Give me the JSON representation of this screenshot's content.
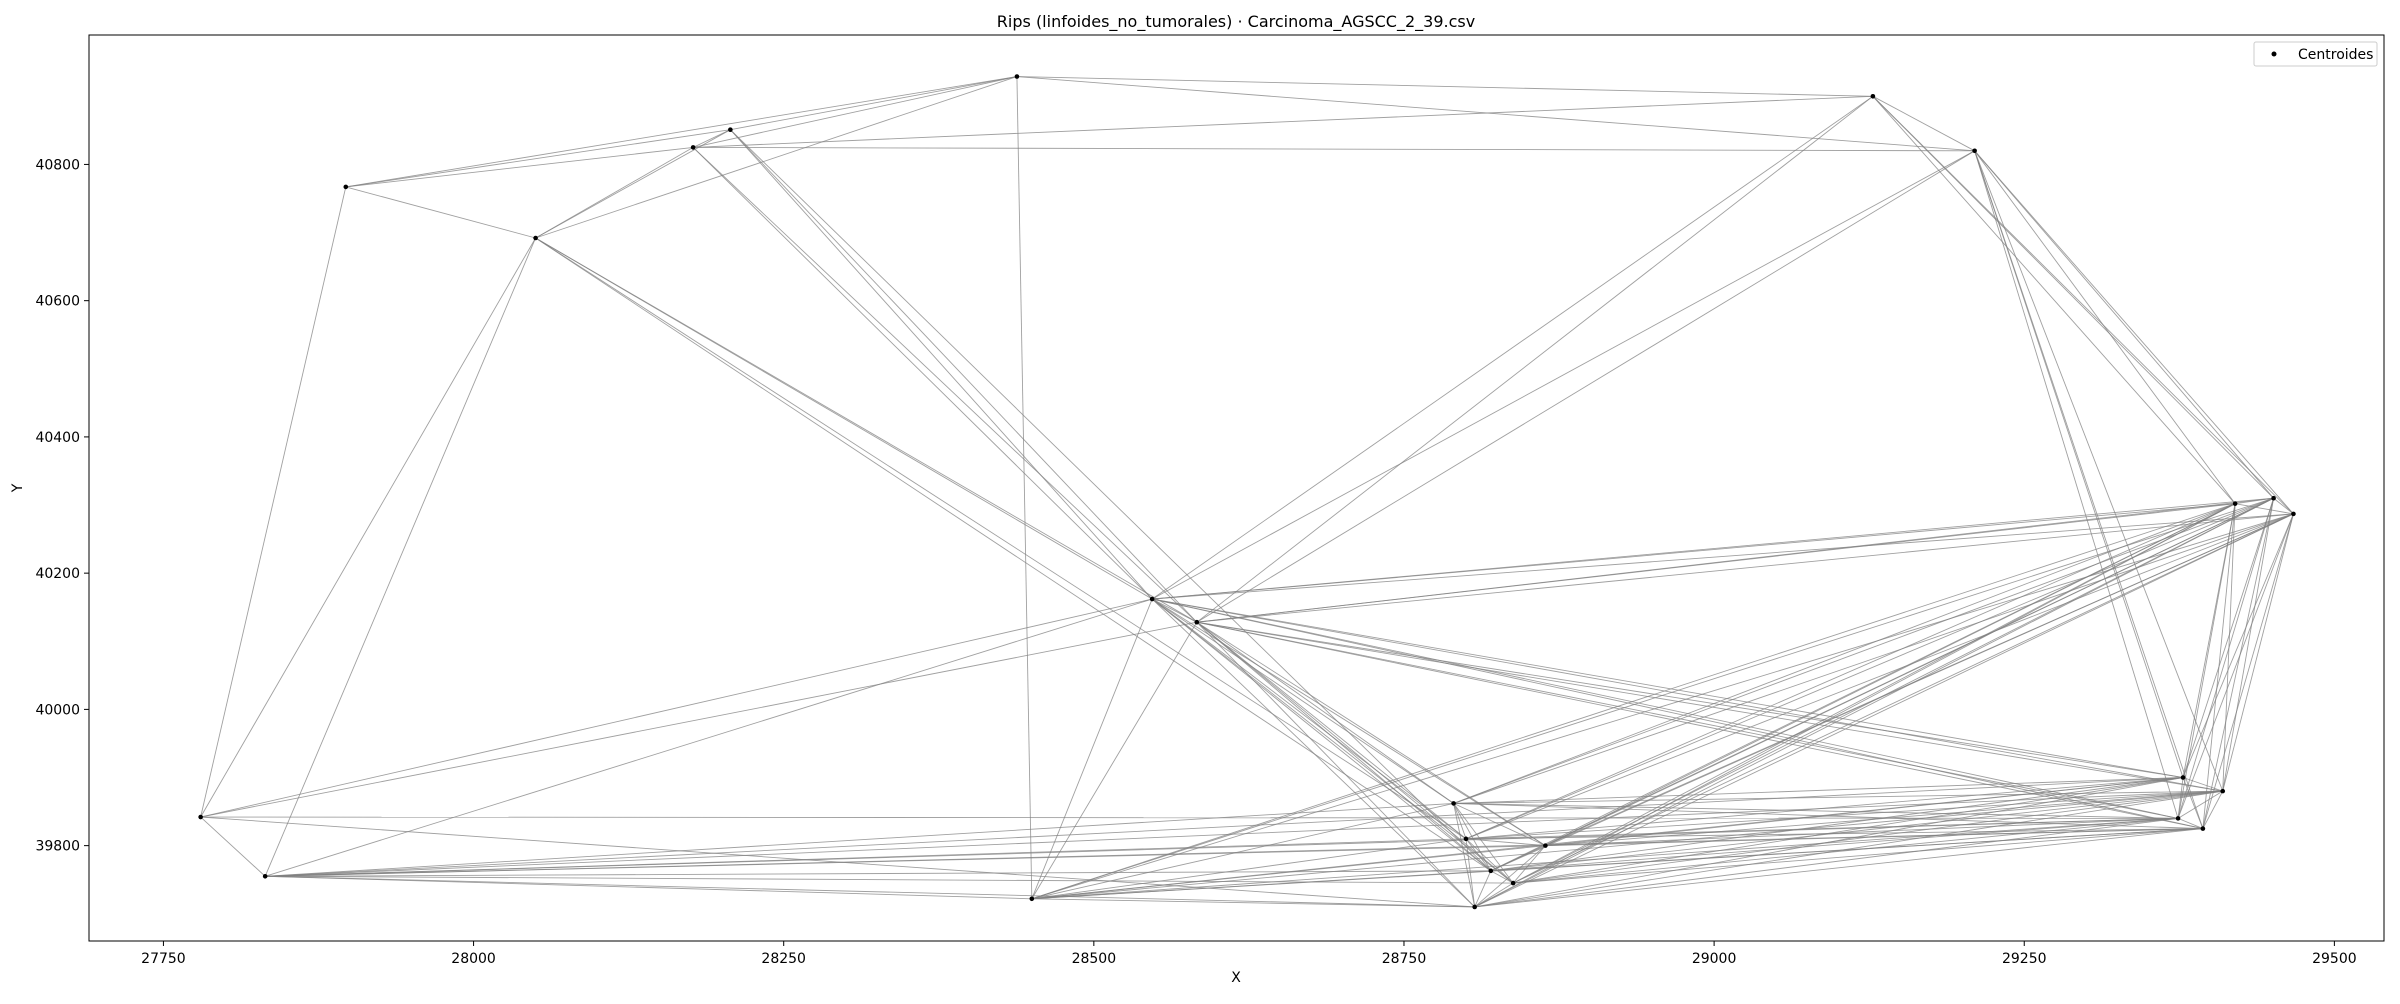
{
  "chart_data": {
    "type": "scatter",
    "title": "Rips (linfoides_no_tumorales) · Carcinoma_AGSCC_2_39.csv",
    "xlabel": "X",
    "ylabel": "Y",
    "xlim": [
      27690,
      29540
    ],
    "ylim": [
      39660,
      40990
    ],
    "xticks": [
      27750,
      28000,
      28250,
      28500,
      28750,
      29000,
      29250,
      29500
    ],
    "yticks": [
      39800,
      40000,
      40200,
      40400,
      40600,
      40800
    ],
    "grid": false,
    "legend": {
      "position": "top-right",
      "entries": [
        "Centroides"
      ]
    },
    "series": [
      {
        "name": "Centroides",
        "color": "#000000",
        "points": [
          {
            "x": 27780,
            "y": 39842
          },
          {
            "x": 27832,
            "y": 39755
          },
          {
            "x": 27897,
            "y": 40767
          },
          {
            "x": 28050,
            "y": 40692
          },
          {
            "x": 28177,
            "y": 40825
          },
          {
            "x": 28207,
            "y": 40851
          },
          {
            "x": 28438,
            "y": 40929
          },
          {
            "x": 28450,
            "y": 39722
          },
          {
            "x": 28547,
            "y": 40162
          },
          {
            "x": 28583,
            "y": 40128
          },
          {
            "x": 28790,
            "y": 39862
          },
          {
            "x": 28800,
            "y": 39810
          },
          {
            "x": 28807,
            "y": 39710
          },
          {
            "x": 28820,
            "y": 39763
          },
          {
            "x": 28838,
            "y": 39745
          },
          {
            "x": 28864,
            "y": 39800
          },
          {
            "x": 29128,
            "y": 40900
          },
          {
            "x": 29210,
            "y": 40820
          },
          {
            "x": 29374,
            "y": 39840
          },
          {
            "x": 29378,
            "y": 39900
          },
          {
            "x": 29394,
            "y": 39825
          },
          {
            "x": 29410,
            "y": 39880
          },
          {
            "x": 29420,
            "y": 40302
          },
          {
            "x": 29451,
            "y": 40310
          },
          {
            "x": 29467,
            "y": 40287
          }
        ]
      }
    ],
    "edges": [
      [
        0,
        1
      ],
      [
        0,
        2
      ],
      [
        0,
        3
      ],
      [
        0,
        8
      ],
      [
        0,
        9
      ],
      [
        0,
        12
      ],
      [
        0,
        18
      ],
      [
        1,
        3
      ],
      [
        1,
        7
      ],
      [
        1,
        8
      ],
      [
        1,
        10
      ],
      [
        1,
        11
      ],
      [
        1,
        12
      ],
      [
        1,
        13
      ],
      [
        1,
        14
      ],
      [
        1,
        15
      ],
      [
        1,
        18
      ],
      [
        1,
        19
      ],
      [
        1,
        20
      ],
      [
        1,
        21
      ],
      [
        2,
        3
      ],
      [
        2,
        4
      ],
      [
        2,
        5
      ],
      [
        2,
        6
      ],
      [
        3,
        4
      ],
      [
        3,
        5
      ],
      [
        3,
        6
      ],
      [
        3,
        8
      ],
      [
        3,
        9
      ],
      [
        3,
        11
      ],
      [
        3,
        13
      ],
      [
        4,
        5
      ],
      [
        4,
        6
      ],
      [
        4,
        8
      ],
      [
        4,
        9
      ],
      [
        4,
        16
      ],
      [
        4,
        17
      ],
      [
        5,
        6
      ],
      [
        5,
        8
      ],
      [
        5,
        9
      ],
      [
        5,
        13
      ],
      [
        6,
        7
      ],
      [
        6,
        16
      ],
      [
        6,
        17
      ],
      [
        7,
        8
      ],
      [
        7,
        9
      ],
      [
        7,
        10
      ],
      [
        7,
        11
      ],
      [
        7,
        12
      ],
      [
        7,
        13
      ],
      [
        7,
        15
      ],
      [
        7,
        18
      ],
      [
        7,
        19
      ],
      [
        7,
        20
      ],
      [
        7,
        21
      ],
      [
        7,
        22
      ],
      [
        7,
        23
      ],
      [
        7,
        24
      ],
      [
        8,
        9
      ],
      [
        8,
        10
      ],
      [
        8,
        11
      ],
      [
        8,
        12
      ],
      [
        8,
        13
      ],
      [
        8,
        14
      ],
      [
        8,
        15
      ],
      [
        8,
        16
      ],
      [
        8,
        17
      ],
      [
        8,
        18
      ],
      [
        8,
        19
      ],
      [
        8,
        20
      ],
      [
        8,
        21
      ],
      [
        8,
        22
      ],
      [
        8,
        23
      ],
      [
        8,
        24
      ],
      [
        9,
        10
      ],
      [
        9,
        11
      ],
      [
        9,
        12
      ],
      [
        9,
        13
      ],
      [
        9,
        14
      ],
      [
        9,
        15
      ],
      [
        9,
        16
      ],
      [
        9,
        17
      ],
      [
        9,
        18
      ],
      [
        9,
        19
      ],
      [
        9,
        20
      ],
      [
        9,
        21
      ],
      [
        9,
        22
      ],
      [
        9,
        23
      ],
      [
        9,
        24
      ],
      [
        10,
        11
      ],
      [
        10,
        12
      ],
      [
        10,
        13
      ],
      [
        10,
        14
      ],
      [
        10,
        15
      ],
      [
        10,
        18
      ],
      [
        10,
        19
      ],
      [
        10,
        20
      ],
      [
        10,
        21
      ],
      [
        10,
        22
      ],
      [
        10,
        23
      ],
      [
        10,
        24
      ],
      [
        11,
        12
      ],
      [
        11,
        13
      ],
      [
        11,
        14
      ],
      [
        11,
        15
      ],
      [
        11,
        18
      ],
      [
        11,
        19
      ],
      [
        11,
        20
      ],
      [
        11,
        21
      ],
      [
        11,
        22
      ],
      [
        11,
        23
      ],
      [
        11,
        24
      ],
      [
        12,
        13
      ],
      [
        12,
        14
      ],
      [
        12,
        15
      ],
      [
        12,
        18
      ],
      [
        12,
        19
      ],
      [
        12,
        20
      ],
      [
        12,
        21
      ],
      [
        12,
        22
      ],
      [
        12,
        23
      ],
      [
        12,
        24
      ],
      [
        13,
        14
      ],
      [
        13,
        15
      ],
      [
        13,
        18
      ],
      [
        13,
        19
      ],
      [
        13,
        20
      ],
      [
        13,
        21
      ],
      [
        13,
        22
      ],
      [
        13,
        23
      ],
      [
        13,
        24
      ],
      [
        14,
        15
      ],
      [
        14,
        18
      ],
      [
        14,
        19
      ],
      [
        14,
        20
      ],
      [
        14,
        21
      ],
      [
        14,
        22
      ],
      [
        14,
        23
      ],
      [
        14,
        24
      ],
      [
        15,
        18
      ],
      [
        15,
        19
      ],
      [
        15,
        20
      ],
      [
        15,
        21
      ],
      [
        15,
        22
      ],
      [
        15,
        23
      ],
      [
        15,
        24
      ],
      [
        16,
        17
      ],
      [
        16,
        22
      ],
      [
        16,
        23
      ],
      [
        16,
        24
      ],
      [
        17,
        18
      ],
      [
        17,
        19
      ],
      [
        17,
        20
      ],
      [
        17,
        21
      ],
      [
        17,
        22
      ],
      [
        17,
        23
      ],
      [
        17,
        24
      ],
      [
        18,
        19
      ],
      [
        18,
        20
      ],
      [
        18,
        21
      ],
      [
        18,
        22
      ],
      [
        18,
        23
      ],
      [
        18,
        24
      ],
      [
        19,
        20
      ],
      [
        19,
        21
      ],
      [
        19,
        22
      ],
      [
        19,
        23
      ],
      [
        19,
        24
      ],
      [
        20,
        21
      ],
      [
        20,
        22
      ],
      [
        20,
        23
      ],
      [
        20,
        24
      ],
      [
        21,
        22
      ],
      [
        21,
        23
      ],
      [
        21,
        24
      ],
      [
        22,
        23
      ],
      [
        22,
        24
      ],
      [
        23,
        24
      ]
    ]
  }
}
